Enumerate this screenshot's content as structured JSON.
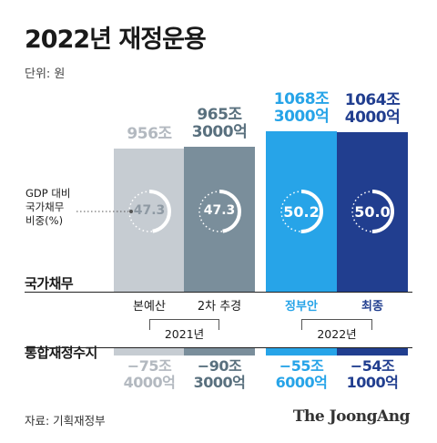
{
  "title": "2022년 재정운용",
  "unit": "단위: 원",
  "gdp_label": [
    "GDP 대비",
    "국가채무",
    "비중(%)"
  ],
  "section_debt": "국가채무",
  "section_balance": "통합재정수지",
  "years": [
    {
      "label": "2021년",
      "span": [
        0,
        1
      ]
    },
    {
      "label": "2022년",
      "span": [
        2,
        3
      ]
    }
  ],
  "source": "자료: 기획재정부",
  "logo": "The JoongAng",
  "colors": {
    "c0": "#c6ccd2",
    "c1": "#7a8e9b",
    "c2": "#27a4e8",
    "c3": "#213e8f"
  },
  "chart_data": {
    "type": "bar",
    "categories": [
      "본예산",
      "2차 추경",
      "정부안",
      "최종"
    ],
    "series": [
      {
        "name": "국가채무",
        "values": [
          956,
          965.3,
          1068.3,
          1064.4
        ],
        "labels": [
          [
            "956조"
          ],
          [
            "965조",
            "3000억"
          ],
          [
            "1068조",
            "3000억"
          ],
          [
            "1064조",
            "4000억"
          ]
        ]
      },
      {
        "name": "GDP 대비 국가채무 비중(%)",
        "values": [
          47.3,
          47.3,
          50.2,
          50.0
        ],
        "labels": [
          "47.3",
          "47.3",
          "50.2",
          "50.0"
        ]
      },
      {
        "name": "통합재정수지",
        "values": [
          -75.4,
          -90.3,
          -55.6,
          -54.1
        ],
        "labels": [
          [
            "−75조",
            "4000억"
          ],
          [
            "−90조",
            "3000억"
          ],
          [
            "−55조",
            "6000억"
          ],
          [
            "−54조",
            "1000억"
          ]
        ]
      }
    ],
    "units": "원 (조)"
  }
}
